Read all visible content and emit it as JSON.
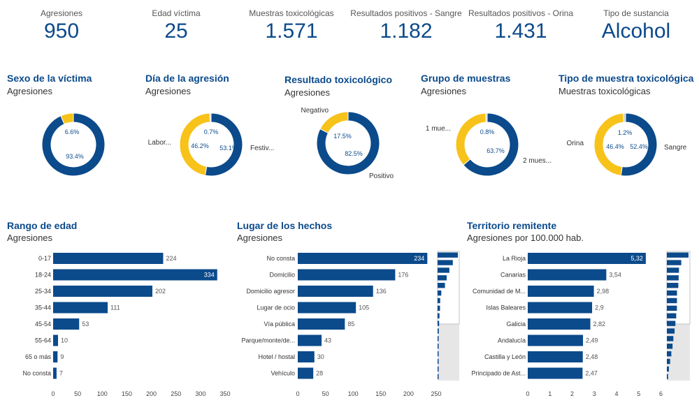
{
  "colors": {
    "primary": "#0b4a8b",
    "secondary": "#f7c21a",
    "grey": "#cccccc"
  },
  "kpis": [
    {
      "label": "Agresiones",
      "value": "950"
    },
    {
      "label": "Edad víctima",
      "value": "25"
    },
    {
      "label": "Muestras toxicológicas",
      "value": "1.571"
    },
    {
      "label": "Resultados positivos - Sangre",
      "value": "1.182"
    },
    {
      "label": "Resultados positivos - Orina",
      "value": "1.431"
    },
    {
      "label": "Tipo de sustancia",
      "value": "Alcohol"
    }
  ],
  "panels": {
    "sexo": {
      "title": "Sexo de la víctima",
      "subtitle": "Agresiones"
    },
    "dia": {
      "title": "Día de la agresión",
      "subtitle": "Agresiones"
    },
    "resultado": {
      "title": "Resultado toxicológico",
      "subtitle": "Agresiones"
    },
    "grupo": {
      "title": "Grupo de muestras",
      "subtitle": "Agresiones"
    },
    "tipo": {
      "title": "Tipo de muestra toxicológica",
      "subtitle": "Muestras toxicológicas"
    },
    "edad": {
      "title": "Rango de edad",
      "subtitle": "Agresiones"
    },
    "lugar": {
      "title": "Lugar de los hechos",
      "subtitle": "Agresiones"
    },
    "territorio": {
      "title": "Territorio remitente",
      "subtitle": "Agresiones por 100.000 hab."
    }
  },
  "chart_data": [
    {
      "id": "sexo",
      "type": "pie",
      "title": "Sexo de la víctima",
      "slices": [
        {
          "value": 93.4,
          "label": "93.4%",
          "color": "#0b4a8b",
          "side": ""
        },
        {
          "value": 6.6,
          "label": "6.6%",
          "color": "#f7c21a",
          "side": ""
        }
      ]
    },
    {
      "id": "dia",
      "type": "pie",
      "title": "Día de la agresión",
      "slices": [
        {
          "value": 53.1,
          "label": "53.1%",
          "color": "#0b4a8b",
          "side": "Festiv..."
        },
        {
          "value": 46.2,
          "label": "46.2%",
          "color": "#f7c21a",
          "side": "Labor..."
        },
        {
          "value": 0.7,
          "label": "0.7%",
          "color": "#cccccc",
          "side": ""
        }
      ]
    },
    {
      "id": "resultado",
      "type": "pie",
      "title": "Resultado toxicológico",
      "slices": [
        {
          "value": 82.5,
          "label": "82.5%",
          "color": "#0b4a8b",
          "side": "Positivo"
        },
        {
          "value": 17.5,
          "label": "17.5%",
          "color": "#f7c21a",
          "side": "Negativo"
        }
      ]
    },
    {
      "id": "grupo",
      "type": "pie",
      "title": "Grupo de muestras",
      "slices": [
        {
          "value": 63.7,
          "label": "63.7%",
          "color": "#0b4a8b",
          "side": "2 mues..."
        },
        {
          "value": 35.5,
          "label": "",
          "color": "#f7c21a",
          "side": "1 mue..."
        },
        {
          "value": 0.8,
          "label": "0.8%",
          "color": "#cccccc",
          "side": ""
        }
      ]
    },
    {
      "id": "tipo",
      "type": "pie",
      "title": "Tipo de muestra toxicológica",
      "slices": [
        {
          "value": 52.4,
          "label": "52.4%",
          "color": "#0b4a8b",
          "side": "Sangre"
        },
        {
          "value": 46.4,
          "label": "46.4%",
          "color": "#f7c21a",
          "side": "Orina"
        },
        {
          "value": 1.2,
          "label": "1.2%",
          "color": "#cccccc",
          "side": ""
        }
      ]
    },
    {
      "id": "edad",
      "type": "bar",
      "orientation": "horizontal",
      "title": "Rango de edad",
      "categories": [
        "0-17",
        "18-24",
        "25-34",
        "35-44",
        "45-54",
        "55-64",
        "65 o más",
        "No consta"
      ],
      "values": [
        224,
        334,
        202,
        111,
        53,
        10,
        9,
        7
      ],
      "value_labels": [
        "224",
        "334",
        "202",
        "111",
        "53",
        "10",
        "9",
        "7"
      ],
      "xlim": [
        0,
        350
      ],
      "ticks": [
        0,
        50,
        100,
        150,
        200,
        250,
        300,
        350
      ]
    },
    {
      "id": "lugar",
      "type": "bar",
      "orientation": "horizontal",
      "title": "Lugar de los hechos",
      "categories": [
        "No consta",
        "Domicilio",
        "Domicilio agresor",
        "Lugar de ocio",
        "Vía pública",
        "Parque/monte/de...",
        "Hotel / hostal",
        "Vehículo"
      ],
      "values": [
        234,
        176,
        136,
        105,
        85,
        43,
        30,
        28
      ],
      "value_labels": [
        "234",
        "176",
        "136",
        "105",
        "85",
        "43",
        "30",
        "28"
      ],
      "xlim": [
        0,
        250
      ],
      "ticks": [
        0,
        50,
        100,
        150,
        200,
        250
      ],
      "overview": [
        234,
        176,
        136,
        105,
        85,
        43,
        30,
        28,
        22,
        18,
        14,
        10,
        8,
        6,
        5,
        4,
        3
      ]
    },
    {
      "id": "territorio",
      "type": "bar",
      "orientation": "horizontal",
      "title": "Territorio remitente",
      "categories": [
        "La Rioja",
        "Canarias",
        "Comunidad de M...",
        "Islas Baleares",
        "Galicia",
        "Andalucía",
        "Castilla y León",
        "Principado de Ast..."
      ],
      "values": [
        5.32,
        3.54,
        2.98,
        2.9,
        2.82,
        2.49,
        2.48,
        2.47
      ],
      "value_labels": [
        "5,32",
        "3,54",
        "2,98",
        "2,9",
        "2,82",
        "2,49",
        "2,48",
        "2,47"
      ],
      "xlim": [
        0,
        6.3
      ],
      "ticks": [
        0,
        1,
        2,
        3,
        4,
        5,
        6
      ],
      "overview": [
        5.32,
        3.54,
        2.98,
        2.9,
        2.82,
        2.49,
        2.48,
        2.47,
        2.3,
        2.1,
        1.9,
        1.6,
        1.4,
        1.1,
        0.8,
        0.5,
        0.3
      ]
    }
  ]
}
